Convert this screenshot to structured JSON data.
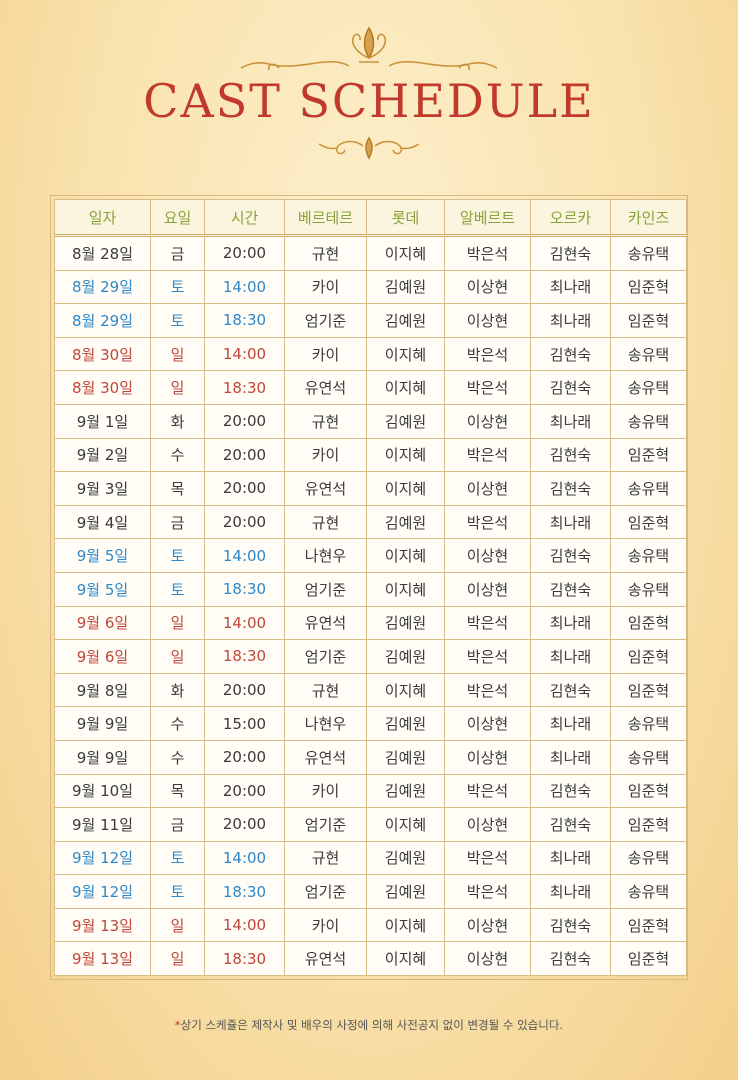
{
  "title": "CAST SCHEDULE",
  "headers": [
    "일자",
    "요일",
    "시간",
    "베르테르",
    "롯데",
    "알베르트",
    "오르카",
    "카인즈"
  ],
  "rows": [
    {
      "date": "8월 28일",
      "day": "금",
      "time": "20:00",
      "c1": "규현",
      "c2": "이지혜",
      "c3": "박은석",
      "c4": "김현숙",
      "c5": "송유택",
      "type": "weekday"
    },
    {
      "date": "8월 29일",
      "day": "토",
      "time": "14:00",
      "c1": "카이",
      "c2": "김예원",
      "c3": "이상현",
      "c4": "최나래",
      "c5": "임준혁",
      "type": "sat"
    },
    {
      "date": "8월 29일",
      "day": "토",
      "time": "18:30",
      "c1": "엄기준",
      "c2": "김예원",
      "c3": "이상현",
      "c4": "최나래",
      "c5": "임준혁",
      "type": "sat"
    },
    {
      "date": "8월 30일",
      "day": "일",
      "time": "14:00",
      "c1": "카이",
      "c2": "이지혜",
      "c3": "박은석",
      "c4": "김현숙",
      "c5": "송유택",
      "type": "sun"
    },
    {
      "date": "8월 30일",
      "day": "일",
      "time": "18:30",
      "c1": "유연석",
      "c2": "이지혜",
      "c3": "박은석",
      "c4": "김현숙",
      "c5": "송유택",
      "type": "sun"
    },
    {
      "date": "9월 1일",
      "day": "화",
      "time": "20:00",
      "c1": "규현",
      "c2": "김예원",
      "c3": "이상현",
      "c4": "최나래",
      "c5": "송유택",
      "type": "weekday"
    },
    {
      "date": "9월 2일",
      "day": "수",
      "time": "20:00",
      "c1": "카이",
      "c2": "이지혜",
      "c3": "박은석",
      "c4": "김현숙",
      "c5": "임준혁",
      "type": "weekday"
    },
    {
      "date": "9월 3일",
      "day": "목",
      "time": "20:00",
      "c1": "유연석",
      "c2": "이지혜",
      "c3": "이상현",
      "c4": "김현숙",
      "c5": "송유택",
      "type": "weekday"
    },
    {
      "date": "9월 4일",
      "day": "금",
      "time": "20:00",
      "c1": "규현",
      "c2": "김예원",
      "c3": "박은석",
      "c4": "최나래",
      "c5": "임준혁",
      "type": "weekday"
    },
    {
      "date": "9월 5일",
      "day": "토",
      "time": "14:00",
      "c1": "나현우",
      "c2": "이지혜",
      "c3": "이상현",
      "c4": "김현숙",
      "c5": "송유택",
      "type": "sat"
    },
    {
      "date": "9월 5일",
      "day": "토",
      "time": "18:30",
      "c1": "엄기준",
      "c2": "이지혜",
      "c3": "이상현",
      "c4": "김현숙",
      "c5": "송유택",
      "type": "sat"
    },
    {
      "date": "9월 6일",
      "day": "일",
      "time": "14:00",
      "c1": "유연석",
      "c2": "김예원",
      "c3": "박은석",
      "c4": "최나래",
      "c5": "임준혁",
      "type": "sun"
    },
    {
      "date": "9월 6일",
      "day": "일",
      "time": "18:30",
      "c1": "엄기준",
      "c2": "김예원",
      "c3": "박은석",
      "c4": "최나래",
      "c5": "임준혁",
      "type": "sun"
    },
    {
      "date": "9월 8일",
      "day": "화",
      "time": "20:00",
      "c1": "규현",
      "c2": "이지혜",
      "c3": "박은석",
      "c4": "김현숙",
      "c5": "임준혁",
      "type": "weekday"
    },
    {
      "date": "9월 9일",
      "day": "수",
      "time": "15:00",
      "c1": "나현우",
      "c2": "김예원",
      "c3": "이상현",
      "c4": "최나래",
      "c5": "송유택",
      "type": "weekday"
    },
    {
      "date": "9월 9일",
      "day": "수",
      "time": "20:00",
      "c1": "유연석",
      "c2": "김예원",
      "c3": "이상현",
      "c4": "최나래",
      "c5": "송유택",
      "type": "weekday"
    },
    {
      "date": "9월 10일",
      "day": "목",
      "time": "20:00",
      "c1": "카이",
      "c2": "김예원",
      "c3": "박은석",
      "c4": "김현숙",
      "c5": "임준혁",
      "type": "weekday"
    },
    {
      "date": "9월 11일",
      "day": "금",
      "time": "20:00",
      "c1": "엄기준",
      "c2": "이지혜",
      "c3": "이상현",
      "c4": "김현숙",
      "c5": "임준혁",
      "type": "weekday"
    },
    {
      "date": "9월 12일",
      "day": "토",
      "time": "14:00",
      "c1": "규현",
      "c2": "김예원",
      "c3": "박은석",
      "c4": "최나래",
      "c5": "송유택",
      "type": "sat"
    },
    {
      "date": "9월 12일",
      "day": "토",
      "time": "18:30",
      "c1": "엄기준",
      "c2": "김예원",
      "c3": "박은석",
      "c4": "최나래",
      "c5": "송유택",
      "type": "sat"
    },
    {
      "date": "9월 13일",
      "day": "일",
      "time": "14:00",
      "c1": "카이",
      "c2": "이지혜",
      "c3": "이상현",
      "c4": "김현숙",
      "c5": "임준혁",
      "type": "sun"
    },
    {
      "date": "9월 13일",
      "day": "일",
      "time": "18:30",
      "c1": "유연석",
      "c2": "이지혜",
      "c3": "이상현",
      "c4": "김현숙",
      "c5": "임준혁",
      "type": "sun"
    }
  ],
  "note": {
    "star": "*",
    "text": "상기 스케쥴은 제작사 및 배우의 사정에 의해 사전공지 없이 변경될 수 있습니다."
  },
  "colors": {
    "title": "#c0392b",
    "header": "#8aa23a",
    "saturday": "#2e88c9",
    "sunday": "#c0463c",
    "ornament": "#c9923a"
  }
}
